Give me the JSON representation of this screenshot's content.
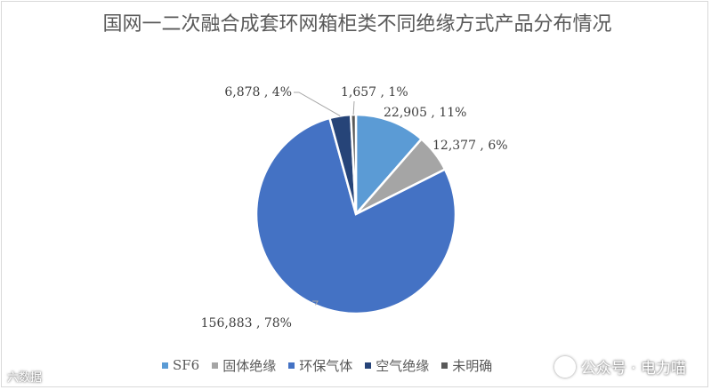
{
  "chart_data": {
    "type": "pie",
    "title": "国网一二次融合成套环网箱柜类不同绝缘方式产品分布情况",
    "slices": [
      {
        "name": "SF6",
        "value": 22905,
        "value_label": "22,905",
        "percent_label": "11%",
        "color": "#5B9BD5"
      },
      {
        "name": "固体绝缘",
        "value": 12377,
        "value_label": "12,377",
        "percent_label": "6%",
        "color": "#A5A5A5"
      },
      {
        "name": "环保气体",
        "value": 156883,
        "value_label": "156,883",
        "percent_label": "78%",
        "color": "#4472C4"
      },
      {
        "name": "空气绝缘",
        "value": 6878,
        "value_label": "6,878",
        "percent_label": "4%",
        "color": "#264478"
      },
      {
        "name": "未明确",
        "value": 1657,
        "value_label": "1,657",
        "percent_label": "1%",
        "color": "#595959"
      }
    ],
    "legend_position": "bottom"
  },
  "watermarks": {
    "right": "公众号 · 电力喵",
    "left": "六数据"
  }
}
